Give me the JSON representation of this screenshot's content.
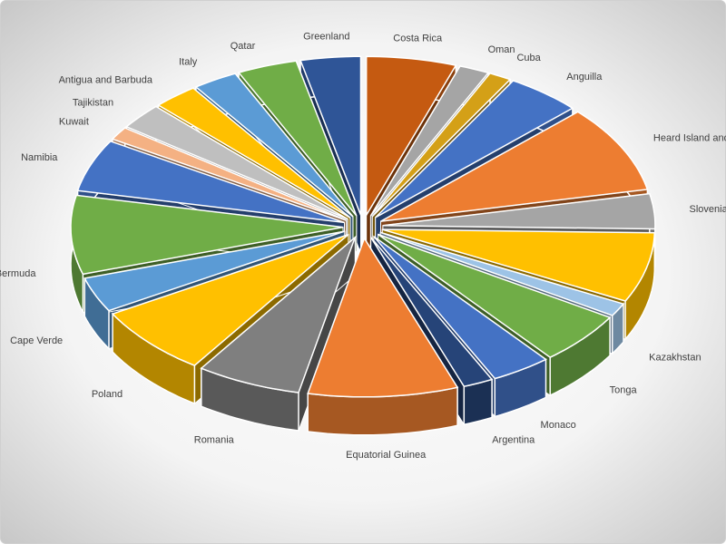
{
  "chart_data": {
    "type": "pie3d",
    "categories": [
      "Costa Rica",
      "Oman",
      "Cuba",
      "Anguilla",
      "Heard Island and McDonald Islands",
      "Slovenia",
      null,
      "Kazakhstan",
      "Tonga",
      "Monaco",
      "Argentina",
      "Equatorial Guinea",
      "Romania",
      "Poland",
      "Cape Verde",
      "Bermuda",
      "Namibia",
      "Kuwait",
      "Tajikistan",
      "Antigua and Barbuda",
      "Italy",
      "Qatar",
      "Greenland"
    ],
    "values": [
      6,
      2,
      1.5,
      5,
      10,
      4,
      8,
      1.5,
      6,
      4,
      2,
      10,
      7,
      8,
      4,
      9,
      6,
      1.5,
      3,
      3,
      3,
      4,
      4
    ],
    "colors": [
      "#c55a11",
      "#a5a5a5",
      "#d4a017",
      "#4472c4",
      "#ed7d31",
      "#a5a5a5",
      "#ffc000",
      "#9dc3e6",
      "#70ad47",
      "#4472c4",
      "#264478",
      "#ed7d31",
      "#7f7f7f",
      "#ffc000",
      "#5b9bd5",
      "#70ad47",
      "#4472c4",
      "#f4b183",
      "#bfbfbf",
      "#ffc000",
      "#5b9bd5",
      "#70ad47",
      "#2f5597"
    ]
  }
}
